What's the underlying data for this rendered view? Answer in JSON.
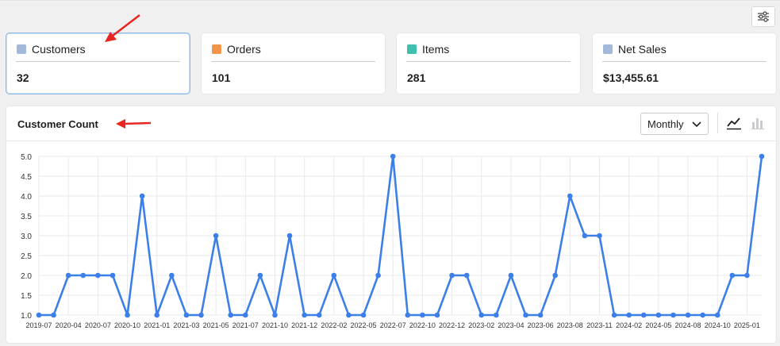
{
  "toolbar": {
    "settings_icon": "sliders-icon"
  },
  "cards": [
    {
      "label": "Customers",
      "value": "32",
      "color": "#a3b9d9",
      "selected": true
    },
    {
      "label": "Orders",
      "value": "101",
      "color": "#f0954a"
    },
    {
      "label": "Items",
      "value": "281",
      "color": "#3fbfad"
    },
    {
      "label": "Net Sales",
      "value": "$13,455.61",
      "color": "#a3b9d9"
    }
  ],
  "chart_panel": {
    "title": "Customer Count",
    "period_select": "Monthly",
    "line_icon": "line-chart-icon",
    "bar_icon": "bar-chart-icon"
  },
  "annotations": {
    "arrow_color": "#e8261f"
  },
  "chart_data": {
    "type": "line",
    "title": "Customer Count",
    "x": [
      "2019-07",
      "2019-08",
      "2020-04",
      "2020-05",
      "2020-07",
      "2020-08",
      "2020-10",
      "2020-11",
      "2021-01",
      "2021-02",
      "2021-03",
      "2021-04",
      "2021-05",
      "2021-06",
      "2021-07",
      "2021-08",
      "2021-10",
      "2021-11",
      "2021-12",
      "2022-01",
      "2022-02",
      "2022-03",
      "2022-05",
      "2022-06",
      "2022-07",
      "2022-08",
      "2022-10",
      "2022-11",
      "2022-12",
      "2023-01",
      "2023-02",
      "2023-03",
      "2023-04",
      "2023-05",
      "2023-06",
      "2023-07",
      "2023-08",
      "2023-09",
      "2023-11",
      "2023-12",
      "2024-02",
      "2024-03",
      "2024-05",
      "2024-06",
      "2024-08",
      "2024-09",
      "2024-10",
      "2024-11",
      "2025-01",
      "2025-02"
    ],
    "series": [
      {
        "color": "#3d7fe8",
        "values": [
          1,
          1,
          2,
          2,
          2,
          2,
          1,
          4,
          1,
          2,
          1,
          1,
          3,
          1,
          1,
          2,
          1,
          3,
          1,
          1,
          2,
          1,
          1,
          2,
          5,
          1,
          1,
          1,
          2,
          2,
          1,
          1,
          2,
          1,
          1,
          2,
          4,
          3,
          3,
          1,
          1,
          1,
          1,
          1,
          1,
          1,
          1,
          2,
          2,
          5
        ]
      }
    ],
    "x_tick_labels": [
      "2019-07",
      "2020-04",
      "2020-07",
      "2020-10",
      "2021-01",
      "2021-03",
      "2021-05",
      "2021-07",
      "2021-10",
      "2021-12",
      "2022-02",
      "2022-05",
      "2022-07",
      "2022-10",
      "2022-12",
      "2023-02",
      "2023-04",
      "2023-06",
      "2023-08",
      "2023-11",
      "2024-02",
      "2024-05",
      "2024-08",
      "2024-10",
      "2025-01"
    ],
    "y_ticks": [
      "1.0",
      "1.5",
      "2.0",
      "2.5",
      "3.0",
      "3.5",
      "4.0",
      "4.5",
      "5.0"
    ],
    "ylim": [
      1,
      5
    ],
    "grid": true
  }
}
